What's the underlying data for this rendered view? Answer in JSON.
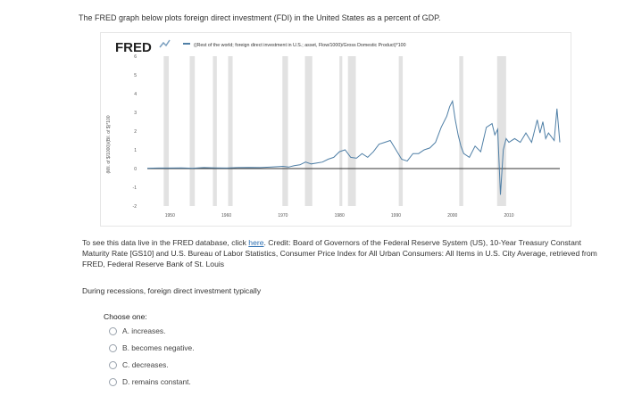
{
  "intro_text": "The FRED graph below plots foreign direct investment (FDI) in the United States as a percent of GDP.",
  "fred_logo": "FRED",
  "chart_data": {
    "type": "line",
    "title": "",
    "legend": "((Rest of the world; foreign direct investment in U.S.; asset, Flow/1000)/Gross Domestic Product)*100",
    "ylabel": "(Mil. of $/1000)/(Bil. of $)*100",
    "xlabel": "",
    "xlim": [
      1946,
      2019
    ],
    "ylim": [
      -2,
      6
    ],
    "yticks": [
      "-2",
      "-1",
      "0",
      "1",
      "2",
      "3",
      "4",
      "5",
      "6"
    ],
    "xticks": [
      "1950",
      "1960",
      "1970",
      "1980",
      "1990",
      "2000",
      "2010"
    ],
    "xtick_values": [
      1950,
      1960,
      1970,
      1980,
      1990,
      2000,
      2010
    ],
    "recessions": [
      [
        1948.9,
        1949.8
      ],
      [
        1953.5,
        1954.4
      ],
      [
        1957.6,
        1958.3
      ],
      [
        1960.3,
        1961.1
      ],
      [
        1969.9,
        1970.9
      ],
      [
        1973.9,
        1975.2
      ],
      [
        1980.0,
        1980.5
      ],
      [
        1981.5,
        1982.9
      ],
      [
        1990.5,
        1991.2
      ],
      [
        2001.2,
        2001.9
      ],
      [
        2007.9,
        2009.5
      ]
    ],
    "series": [
      {
        "x": [
          1946,
          1948,
          1950,
          1952,
          1954,
          1956,
          1958,
          1960,
          1962,
          1964,
          1966,
          1968,
          1969,
          1970,
          1971,
          1972,
          1973,
          1974,
          1975,
          1976,
          1977,
          1978,
          1979,
          1980,
          1981,
          1982,
          1983,
          1984,
          1985,
          1986,
          1987,
          1988,
          1989,
          1990,
          1991,
          1992,
          1993,
          1994,
          1995,
          1996,
          1997,
          1998,
          1999,
          1999.5,
          2000,
          2000.5,
          2001,
          2001.5,
          2002,
          2003,
          2004,
          2005,
          2006,
          2007,
          2007.5,
          2008,
          2008.5,
          2009,
          2009.5,
          2010,
          2011,
          2012,
          2013,
          2014,
          2015,
          2015.5,
          2016,
          2016.5,
          2017,
          2018,
          2018.5,
          2019
        ],
        "y": [
          0.02,
          0.03,
          0.03,
          0.04,
          0.02,
          0.05,
          0.04,
          0.03,
          0.05,
          0.06,
          0.05,
          0.08,
          0.1,
          0.12,
          0.08,
          0.15,
          0.2,
          0.35,
          0.25,
          0.3,
          0.35,
          0.5,
          0.6,
          0.9,
          1.0,
          0.6,
          0.55,
          0.8,
          0.6,
          0.9,
          1.3,
          1.4,
          1.5,
          1.0,
          0.5,
          0.4,
          0.8,
          0.8,
          1.0,
          1.1,
          1.4,
          2.2,
          2.8,
          3.3,
          3.6,
          2.6,
          1.8,
          1.2,
          0.8,
          0.6,
          1.2,
          0.9,
          2.2,
          2.4,
          1.8,
          2.1,
          -1.4,
          1.0,
          1.6,
          1.4,
          1.6,
          1.4,
          1.9,
          1.4,
          2.6,
          1.9,
          2.5,
          1.6,
          1.9,
          1.5,
          3.2,
          1.4
        ]
      }
    ]
  },
  "info": {
    "before_link": "To see this data live in the FRED database, click ",
    "link": "here",
    "after_link": ". Credit: Board of Governors of the Federal Reserve System (US), 10-Year Treasury Constant Maturity Rate [GS10] and U.S. Bureau of Labor Statistics, Consumer Price Index for All Urban Consumers: All Items in U.S. City Average, retrieved from FRED, Federal Reserve Bank of St. Louis"
  },
  "question": "During recessions, foreign direct investment typically",
  "choose_label": "Choose one:",
  "options": [
    {
      "label": "A. increases."
    },
    {
      "label": "B. becomes negative."
    },
    {
      "label": "C. decreases."
    },
    {
      "label": "D. remains constant."
    }
  ],
  "colors": {
    "line": "#4f7fa6",
    "recession": "#e2e2e2",
    "zero": "#333333"
  }
}
